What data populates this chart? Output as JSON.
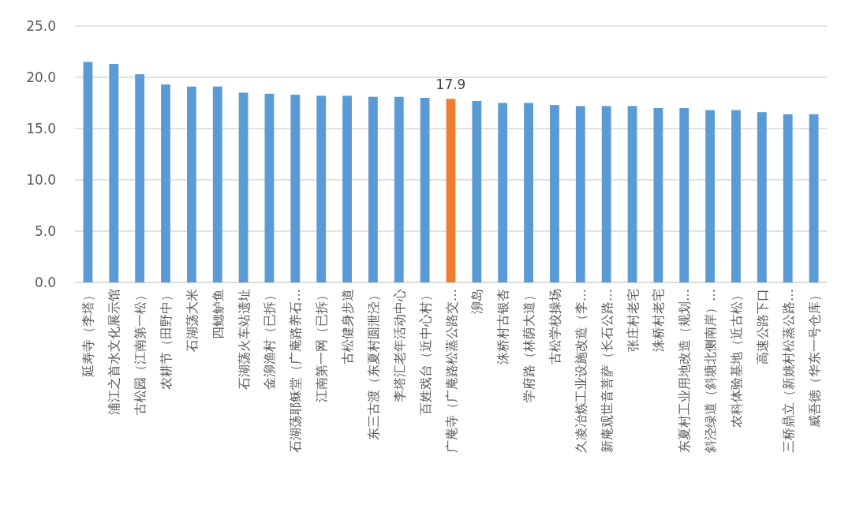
{
  "chart_data": {
    "type": "bar",
    "categories": [
      "延寿寺（李塔）",
      "浦江之首水文化展示馆",
      "古松园（江南第一松）",
      "农耕节（田野中）",
      "石湖荡大米",
      "四鳃鲈鱼",
      "石湖荡火车站遗址",
      "金泖渔村（已拆）",
      "石湖荡耶稣堂（广庵路养石…",
      "江南第一网（已拆）",
      "古松健身步道",
      "东三古渡（东夏村圆泄泾）",
      "李塔汇老年活动中心",
      "百姓戏台（近中心村）",
      "广庵寺（广庵路松蒸公路交…",
      "泖岛",
      "洙桥村古银杏",
      "学府路（林荫大道）",
      "古松学校操场",
      "久凌冶炼工业设施改造（李…",
      "新庵观世音菩萨（长石公路…",
      "张庄村老宅",
      "洙桥村老宅",
      "东夏村工业用地改造（规划…",
      "斜泾绿道（斜塘北侧南岸）…",
      "农科体验基地（近古松）",
      "高速公路下口",
      "三桥鼎立（新姚村松蒸公路…",
      "威吾德（华东一号仓库）"
    ],
    "values": [
      21.5,
      21.3,
      20.3,
      19.3,
      19.1,
      19.1,
      18.5,
      18.4,
      18.3,
      18.2,
      18.2,
      18.1,
      18.1,
      18.0,
      17.9,
      17.7,
      17.5,
      17.5,
      17.3,
      17.2,
      17.2,
      17.2,
      17.0,
      17.0,
      16.8,
      16.8,
      16.6,
      16.4,
      16.4
    ],
    "colors": [
      "#5b9bd5",
      "#5b9bd5",
      "#5b9bd5",
      "#5b9bd5",
      "#5b9bd5",
      "#5b9bd5",
      "#5b9bd5",
      "#5b9bd5",
      "#5b9bd5",
      "#5b9bd5",
      "#5b9bd5",
      "#5b9bd5",
      "#5b9bd5",
      "#5b9bd5",
      "#ed7d31",
      "#5b9bd5",
      "#5b9bd5",
      "#5b9bd5",
      "#5b9bd5",
      "#5b9bd5",
      "#5b9bd5",
      "#5b9bd5",
      "#5b9bd5",
      "#5b9bd5",
      "#5b9bd5",
      "#5b9bd5",
      "#5b9bd5",
      "#5b9bd5",
      "#5b9bd5"
    ],
    "value_labels": [
      null,
      null,
      null,
      null,
      null,
      null,
      null,
      null,
      null,
      null,
      null,
      null,
      null,
      null,
      "17.9",
      null,
      null,
      null,
      null,
      null,
      null,
      null,
      null,
      null,
      null,
      null,
      null,
      null,
      null
    ],
    "ylim": [
      0,
      25
    ],
    "yticks": [
      {
        "value": 0,
        "label": "0.0"
      },
      {
        "value": 5,
        "label": "5.0"
      },
      {
        "value": 10,
        "label": "10.0"
      },
      {
        "value": 15,
        "label": "15.0"
      },
      {
        "value": 20,
        "label": "20.0"
      },
      {
        "value": 25,
        "label": "25.0"
      }
    ],
    "grid": "y"
  }
}
